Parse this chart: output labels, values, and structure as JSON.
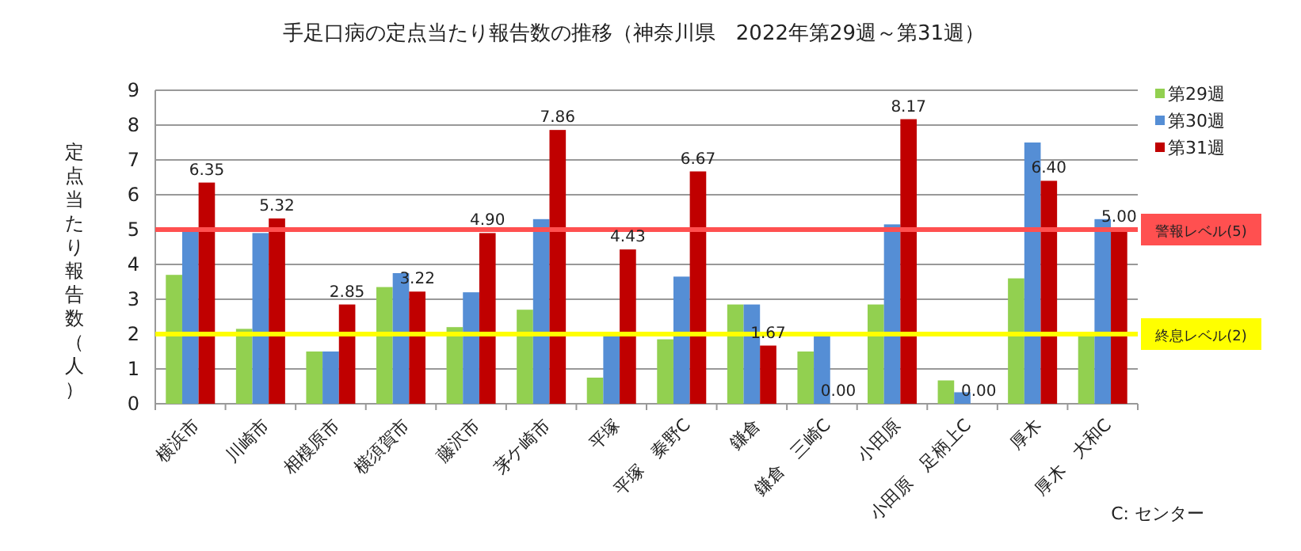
{
  "chart_data": {
    "type": "bar",
    "title": "手足口病の定点当たり報告数の推移（神奈川県　2022年第29週～第31週）",
    "ylabel": "定点当たり報告数（人）",
    "categories": [
      "横浜市",
      "川崎市",
      "相模原市",
      "横須賀市",
      "藤沢市",
      "茅ケ崎市",
      "平塚",
      "平塚　秦野C",
      "鎌倉",
      "鎌倉　三崎C",
      "小田原",
      "小田原　足柄上C",
      "厚木",
      "厚木　大和C"
    ],
    "series": [
      {
        "name": "第29週",
        "color": "#92d050",
        "values": [
          3.7,
          2.15,
          1.5,
          3.35,
          2.2,
          2.7,
          0.75,
          1.85,
          2.85,
          1.5,
          2.85,
          0.67,
          3.6,
          2.0
        ]
      },
      {
        "name": "第30週",
        "color": "#558ed5",
        "values": [
          5.0,
          4.9,
          1.5,
          3.75,
          3.2,
          5.3,
          2.0,
          3.65,
          2.85,
          2.0,
          5.15,
          0.33,
          7.5,
          5.3
        ]
      },
      {
        "name": "第31週",
        "color": "#c00000",
        "values": [
          6.35,
          5.32,
          2.85,
          3.22,
          4.9,
          7.86,
          4.43,
          6.67,
          1.67,
          0.0,
          8.17,
          0.0,
          6.4,
          5.0
        ],
        "value_labels": [
          "6.35",
          "5.32",
          "2.85",
          "3.22",
          "4.90",
          "7.86",
          "4.43",
          "6.67",
          "1.67",
          "0.00",
          "8.17",
          "0.00",
          "6.40",
          "5.00"
        ]
      }
    ],
    "ylim": [
      0,
      9
    ],
    "yticks": [
      0,
      1,
      2,
      3,
      4,
      5,
      6,
      7,
      8,
      9
    ],
    "grid": "y",
    "legend": "top right",
    "ref_lines": [
      {
        "axis": "y",
        "value": 5,
        "label": "警報レベル(5)",
        "color": "#ff5050"
      },
      {
        "axis": "y",
        "value": 2,
        "label": "終息レベル(2)",
        "color": "#ffff00"
      }
    ],
    "annotations": [
      "C: センター"
    ]
  }
}
